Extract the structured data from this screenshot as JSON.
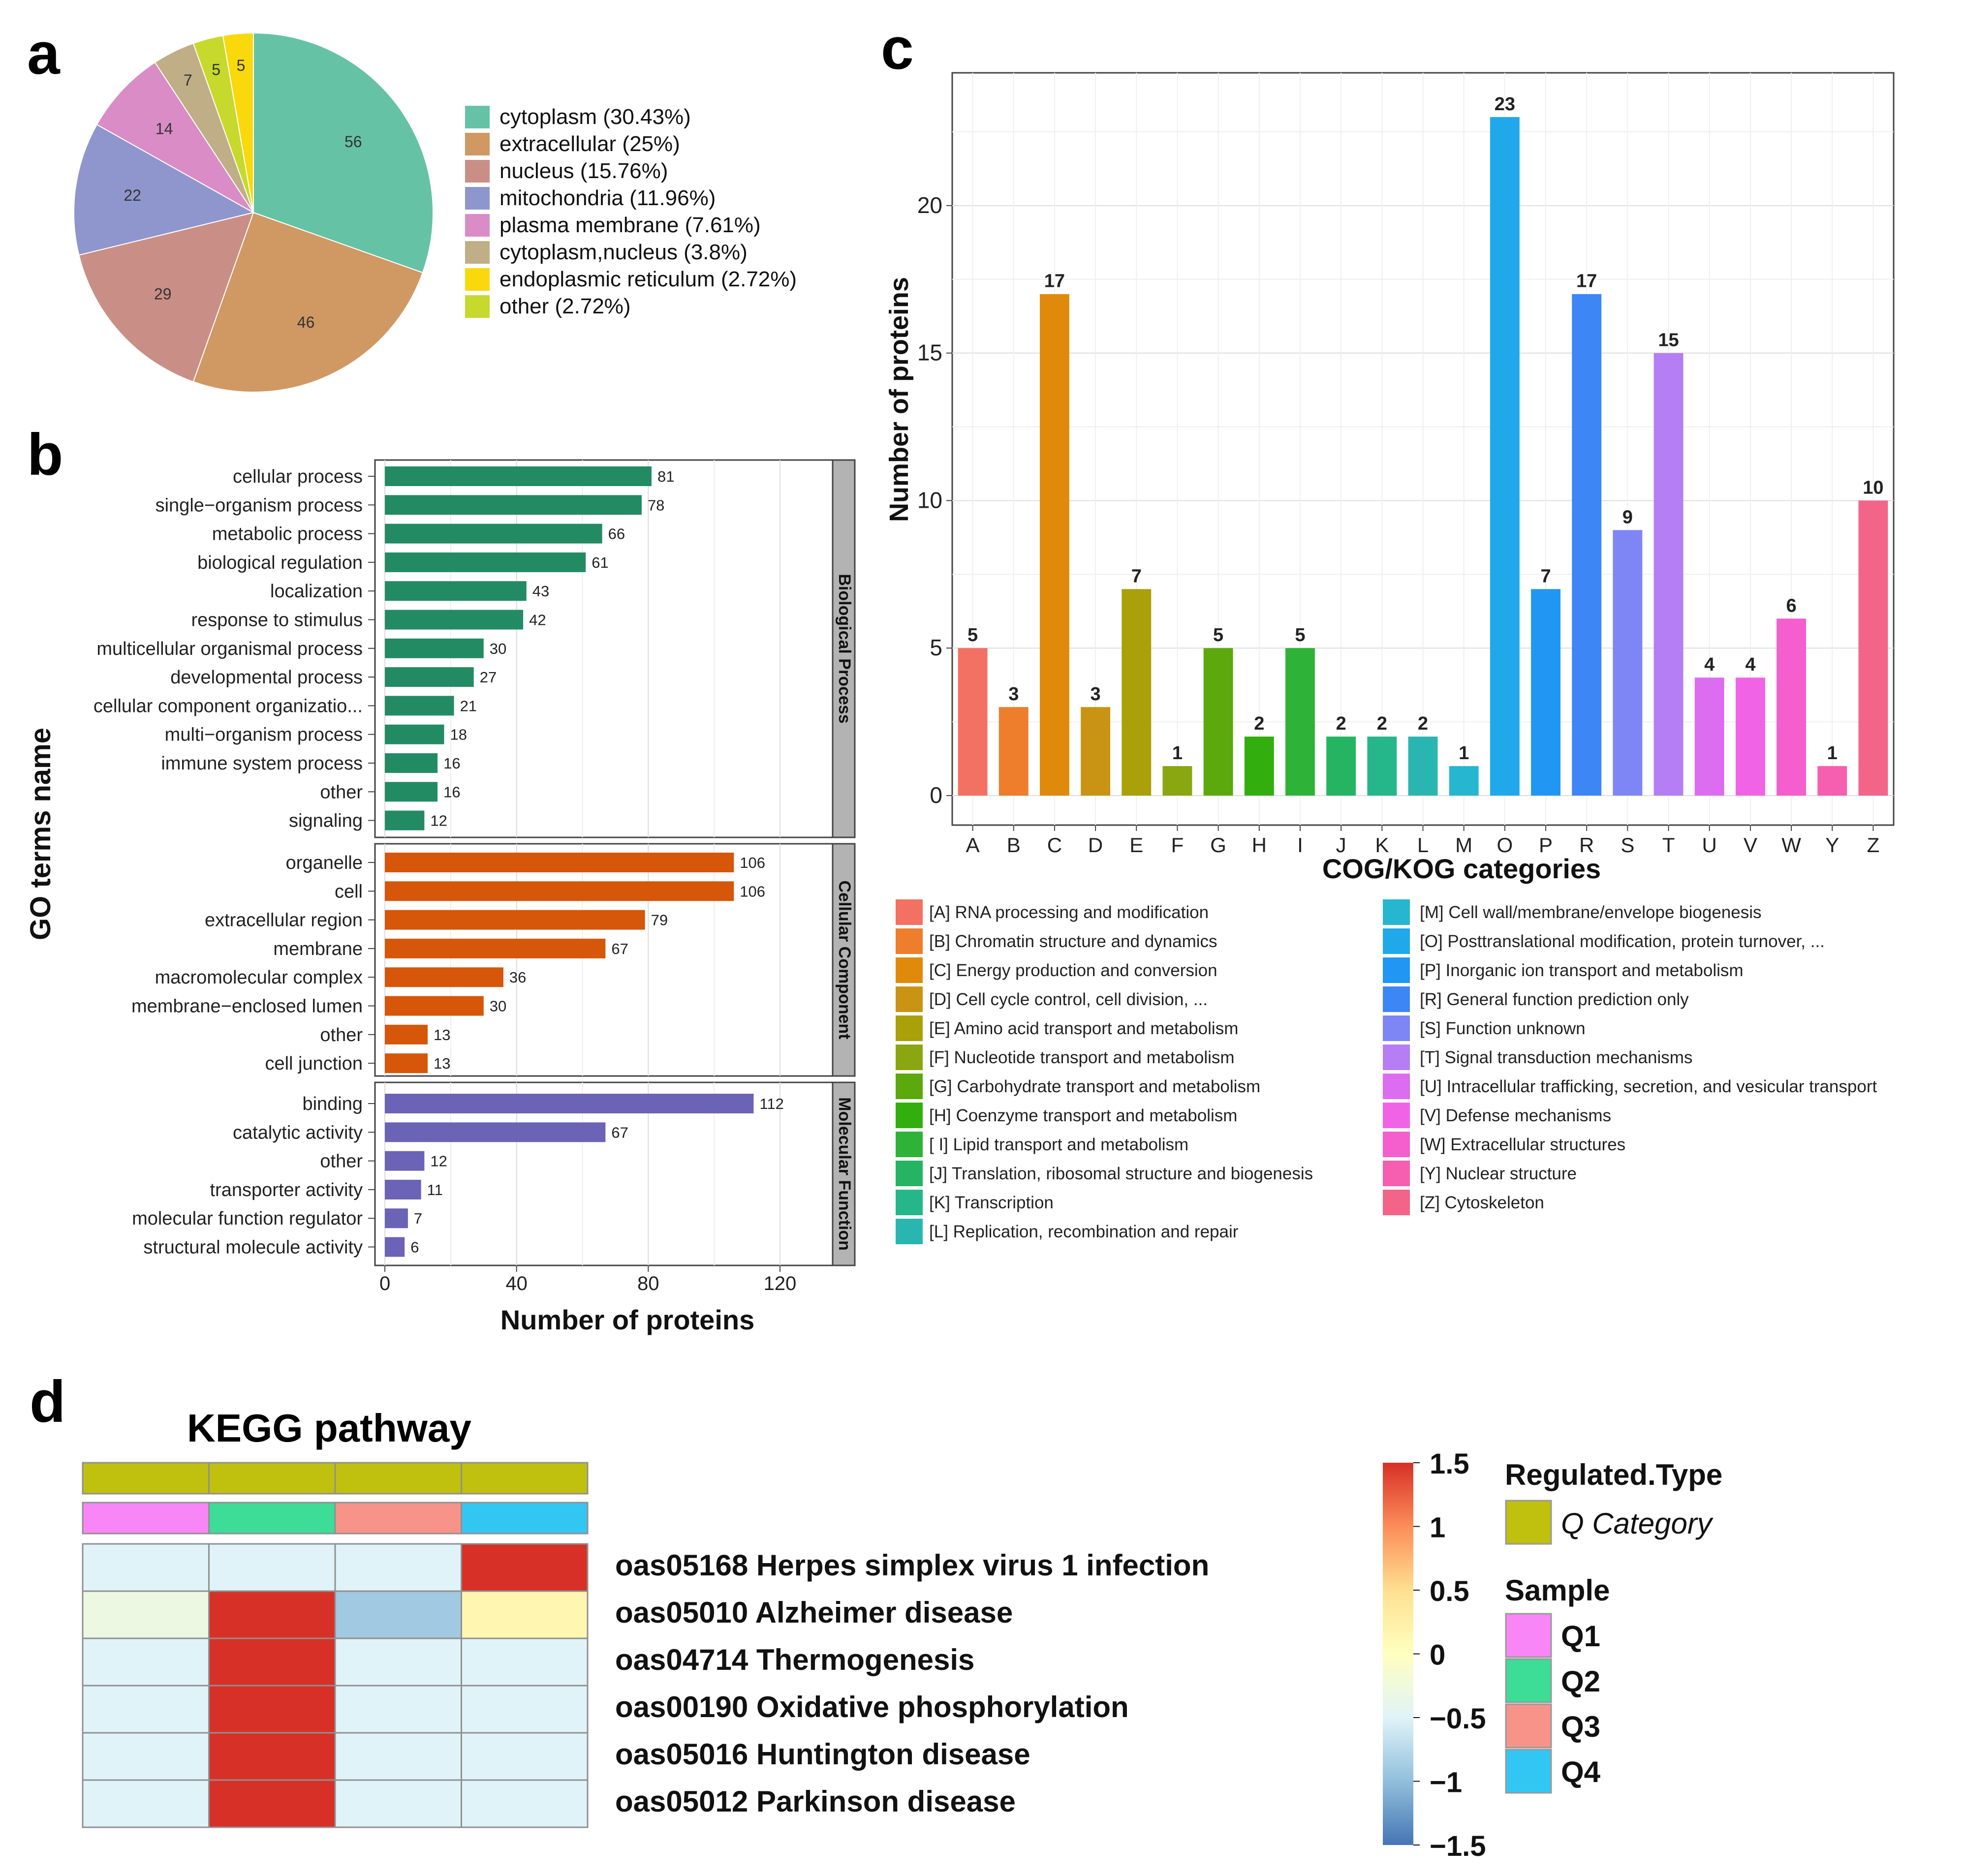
{
  "panel_labels": {
    "a": "a",
    "b": "b",
    "c": "c",
    "d": "d"
  },
  "chart_data": [
    {
      "id": "a",
      "type": "pie",
      "slices": [
        {
          "label": "cytoplasm (30.43%)",
          "value": 56,
          "value_text": "56",
          "color": "#66c2a5"
        },
        {
          "label": "extracellular (25%)",
          "value": 46,
          "value_text": "46",
          "color": "#d09862"
        },
        {
          "label": "nucleus (15.76%)",
          "value": 29,
          "value_text": "29",
          "color": "#c98f86"
        },
        {
          "label": "mitochondria (11.96%)",
          "value": 22,
          "value_text": "22",
          "color": "#8e96cd"
        },
        {
          "label": "plasma membrane (7.61%)",
          "value": 14,
          "value_text": "14",
          "color": "#d98cc6"
        },
        {
          "label": "cytoplasm,nucleus (3.8%)",
          "value": 7,
          "value_text": "7",
          "color": "#bfae86"
        },
        {
          "label": "other (2.72%)",
          "value": 5,
          "value_text": "5",
          "color": "#c6d92c"
        },
        {
          "label": "endoplasmic reticulum (2.72%)",
          "value": 5,
          "value_text": "5",
          "color": "#f9d80c"
        }
      ],
      "legend": [
        {
          "label": "cytoplasm (30.43%)",
          "color": "#66c2a5"
        },
        {
          "label": "extracellular (25%)",
          "color": "#d09862"
        },
        {
          "label": "nucleus (15.76%)",
          "color": "#c98f86"
        },
        {
          "label": "mitochondria (11.96%)",
          "color": "#8e96cd"
        },
        {
          "label": "plasma membrane (7.61%)",
          "color": "#d98cc6"
        },
        {
          "label": "cytoplasm,nucleus (3.8%)",
          "color": "#bfae86"
        },
        {
          "label": "endoplasmic reticulum (2.72%)",
          "color": "#f9d80c"
        },
        {
          "label": "other (2.72%)",
          "color": "#c6d92c"
        }
      ]
    },
    {
      "id": "b",
      "type": "bar",
      "orientation": "horizontal",
      "xlabel": "Number of proteins",
      "ylabel": "GO terms name",
      "xlim": [
        -3,
        136
      ],
      "xticks": [
        0,
        40,
        80,
        120
      ],
      "groups": [
        {
          "name": "Biological Process",
          "color": "#238b64",
          "items": [
            {
              "label": "cellular process",
              "value": 81
            },
            {
              "label": "single−organism process",
              "value": 78
            },
            {
              "label": "metabolic process",
              "value": 66
            },
            {
              "label": "biological regulation",
              "value": 61
            },
            {
              "label": "localization",
              "value": 43
            },
            {
              "label": "response to stimulus",
              "value": 42
            },
            {
              "label": "multicellular organismal process",
              "value": 30
            },
            {
              "label": "developmental process",
              "value": 27
            },
            {
              "label": "cellular component organizatio...",
              "value": 21
            },
            {
              "label": "multi−organism process",
              "value": 18
            },
            {
              "label": "immune system process",
              "value": 16
            },
            {
              "label": "other",
              "value": 16
            },
            {
              "label": "signaling",
              "value": 12
            }
          ]
        },
        {
          "name": "Cellular Component",
          "color": "#d6560a",
          "items": [
            {
              "label": "organelle",
              "value": 106
            },
            {
              "label": "cell",
              "value": 106
            },
            {
              "label": "extracellular region",
              "value": 79
            },
            {
              "label": "membrane",
              "value": 67
            },
            {
              "label": "macromolecular complex",
              "value": 36
            },
            {
              "label": "membrane−enclosed lumen",
              "value": 30
            },
            {
              "label": "other",
              "value": 13
            },
            {
              "label": "cell junction",
              "value": 13
            }
          ]
        },
        {
          "name": "Molecular Function",
          "color": "#6b63b5",
          "items": [
            {
              "label": "binding",
              "value": 112
            },
            {
              "label": "catalytic activity",
              "value": 67
            },
            {
              "label": "other",
              "value": 12
            },
            {
              "label": "transporter activity",
              "value": 11
            },
            {
              "label": "molecular function regulator",
              "value": 7
            },
            {
              "label": "structural molecule activity",
              "value": 6
            }
          ]
        }
      ]
    },
    {
      "id": "c",
      "type": "bar",
      "xlabel": "COG/KOG categories",
      "ylabel": "Number of proteins",
      "ylim": [
        -1,
        24.5
      ],
      "yticks": [
        0,
        5,
        10,
        15,
        20
      ],
      "categories": [
        "A",
        "B",
        "C",
        "D",
        "E",
        "F",
        "G",
        "H",
        "I",
        "J",
        "K",
        "L",
        "M",
        "O",
        "P",
        "R",
        "S",
        "T",
        "U",
        "V",
        "W",
        "Y",
        "Z"
      ],
      "values": [
        5,
        3,
        17,
        3,
        7,
        1,
        5,
        2,
        5,
        2,
        2,
        2,
        1,
        23,
        7,
        17,
        9,
        15,
        4,
        4,
        6,
        1,
        10
      ],
      "colors": [
        "#f27163",
        "#ee7d2c",
        "#e08a0c",
        "#c99413",
        "#a9a00a",
        "#8aa610",
        "#5ba90d",
        "#33ae0f",
        "#2fb238",
        "#24b462",
        "#25b68a",
        "#2ab6b0",
        "#26b6cf",
        "#20a9ea",
        "#2196f3",
        "#3d86f5",
        "#7e85f5",
        "#b57ef4",
        "#dc6cf0",
        "#f163e6",
        "#f45fcd",
        "#f65eaf",
        "#f36489"
      ],
      "legend_left": [
        "[A] RNA processing and modification",
        "[B] Chromatin structure and dynamics",
        "[C] Energy production and conversion",
        "[D] Cell cycle control, cell division, ...",
        "[E] Amino acid transport and metabolism",
        "[F] Nucleotide transport and metabolism",
        "[G] Carbohydrate transport and metabolism",
        "[H] Coenzyme transport and metabolism",
        "[ I] Lipid transport and metabolism",
        "[J] Translation, ribosomal structure and biogenesis",
        "[K] Transcription",
        "[L] Replication, recombination and repair"
      ],
      "legend_right": [
        "[M] Cell wall/membrane/envelope biogenesis",
        "[O] Posttranslational modification, protein turnover, ...",
        "[P] Inorganic ion transport and metabolism",
        "[R] General function prediction only",
        "[S] Function unknown",
        "[T] Signal transduction mechanisms",
        "[U] Intracellular trafficking, secretion, and vesicular transport",
        "[V] Defense mechanisms",
        "[W] Extracellular structures",
        "[Y] Nuclear structure",
        "[Z] Cytoskeleton"
      ]
    },
    {
      "id": "d",
      "type": "heatmap",
      "title": "KEGG pathway",
      "columns": [
        "Q1",
        "Q2",
        "Q3",
        "Q4"
      ],
      "column_colors": [
        "#f986f6",
        "#3ddc97",
        "#f8938a",
        "#32c7f3"
      ],
      "regulated_type_color": "#c0c00e",
      "rows": [
        "oas05168 Herpes simplex virus 1 infection",
        "oas05010 Alzheimer disease",
        "oas04714 Thermogenesis",
        "oas00190 Oxidative phosphorylation",
        "oas05016 Huntington disease",
        "oas05012 Parkinson disease"
      ],
      "values": [
        [
          -0.5,
          -0.5,
          -0.5,
          1.5
        ],
        [
          -0.3,
          1.5,
          -0.9,
          0.15
        ],
        [
          -0.5,
          1.5,
          -0.5,
          -0.5
        ],
        [
          -0.5,
          1.5,
          -0.5,
          -0.5
        ],
        [
          -0.5,
          1.5,
          -0.5,
          -0.5
        ],
        [
          -0.5,
          1.5,
          -0.5,
          -0.5
        ]
      ],
      "scale": {
        "min": -1.5,
        "max": 1.5,
        "tick_values": [
          1.5,
          1,
          0.5,
          0,
          -0.5,
          -1,
          -1.5
        ],
        "tick_labels": [
          "1.5",
          "1",
          "0.5",
          "0",
          "−0.5",
          "−1",
          "−1.5"
        ]
      },
      "legend": {
        "regulated_title": "Regulated.Type",
        "regulated_item": "Q Category",
        "sample_title": "Sample",
        "samples": [
          "Q1",
          "Q2",
          "Q3",
          "Q4"
        ]
      }
    }
  ]
}
